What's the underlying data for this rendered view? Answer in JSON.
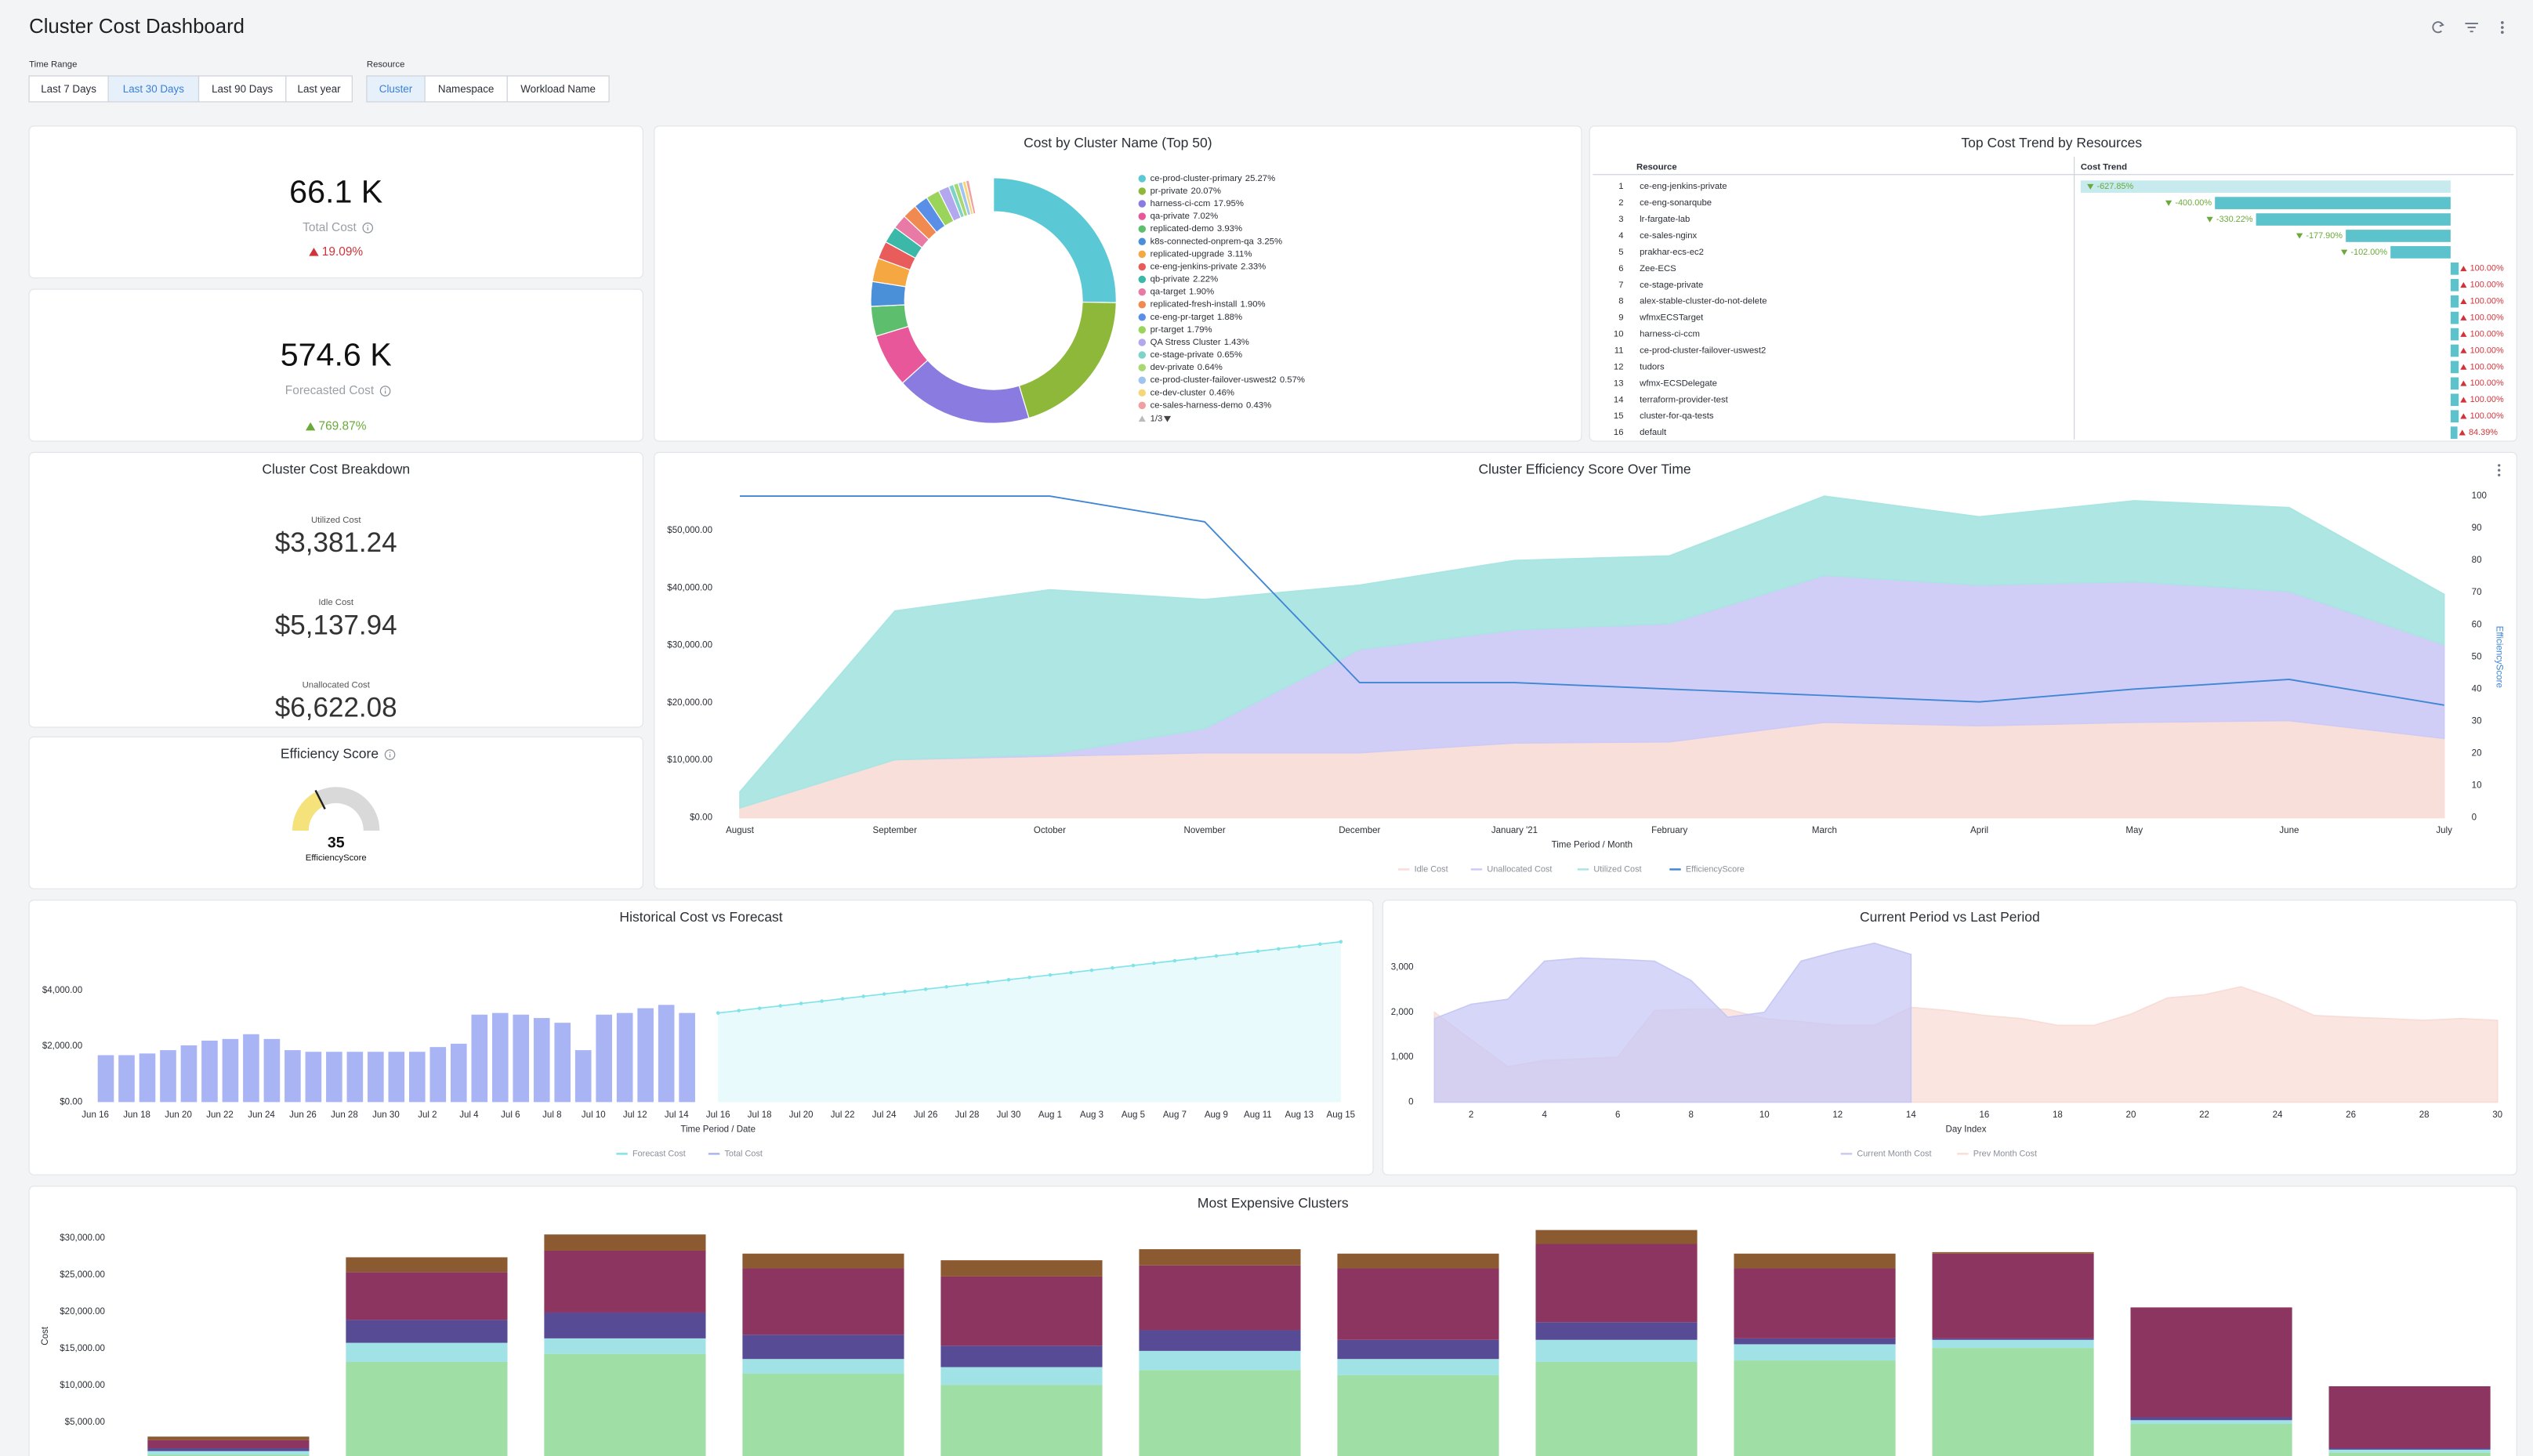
{
  "header": {
    "title": "Cluster Cost Dashboard"
  },
  "filters": [
    {
      "label": "Time Range",
      "options": [
        "Last 7 Days",
        "Last 30 Days",
        "Last 90 Days",
        "Last year"
      ],
      "selected": 1
    },
    {
      "label": "Resource",
      "options": [
        "Cluster",
        "Namespace",
        "Workload Name"
      ],
      "selected": 0
    }
  ],
  "kpis": [
    {
      "value": "66.1 K",
      "label": "Total Cost",
      "change": "19.09%",
      "direction": "up",
      "color": "#d0343a"
    },
    {
      "value": "574.6 K",
      "label": "Forecasted Cost",
      "change": "769.87%",
      "direction": "up",
      "color": "#6aaa3a"
    }
  ],
  "breakdown": {
    "title": "Cluster Cost Breakdown",
    "items": [
      {
        "label": "Utilized Cost",
        "value": "$3,381.24"
      },
      {
        "label": "Idle Cost",
        "value": "$5,137.94"
      },
      {
        "label": "Unallocated Cost",
        "value": "$6,622.08"
      }
    ]
  },
  "efficiency": {
    "title": "Efficiency Score",
    "value": 35,
    "label": "EfficiencyScore",
    "range": [
      0,
      100
    ],
    "color": "#f5e27a"
  },
  "trend_table": {
    "title": "Top Cost Trend by Resources",
    "columns": [
      "Resource",
      "Cost Trend"
    ],
    "bar_color": "#5cc3cc",
    "up_color": "#d0343a",
    "down_color": "#6aaa3a",
    "rows": [
      {
        "rank": 1,
        "resource": "ce-eng-jenkins-private",
        "value": -627.85,
        "label": "-627.85%"
      },
      {
        "rank": 2,
        "resource": "ce-eng-sonarqube",
        "value": -400.0,
        "label": "-400.00%"
      },
      {
        "rank": 3,
        "resource": "lr-fargate-lab",
        "value": -330.22,
        "label": "-330.22%"
      },
      {
        "rank": 4,
        "resource": "ce-sales-nginx",
        "value": -177.9,
        "label": "-177.90%"
      },
      {
        "rank": 5,
        "resource": "prakhar-ecs-ec2",
        "value": -102.0,
        "label": "-102.00%"
      },
      {
        "rank": 6,
        "resource": "Zee-ECS",
        "value": 100.0,
        "label": "100.00%"
      },
      {
        "rank": 7,
        "resource": "ce-stage-private",
        "value": 100.0,
        "label": "100.00%"
      },
      {
        "rank": 8,
        "resource": "alex-stable-cluster-do-not-delete",
        "value": 100.0,
        "label": "100.00%"
      },
      {
        "rank": 9,
        "resource": "wfmxECSTarget",
        "value": 100.0,
        "label": "100.00%"
      },
      {
        "rank": 10,
        "resource": "harness-ci-ccm",
        "value": 100.0,
        "label": "100.00%"
      },
      {
        "rank": 11,
        "resource": "ce-prod-cluster-failover-uswest2",
        "value": 100.0,
        "label": "100.00%"
      },
      {
        "rank": 12,
        "resource": "tudors",
        "value": 100.0,
        "label": "100.00%"
      },
      {
        "rank": 13,
        "resource": "wfmx-ECSDelegate",
        "value": 100.0,
        "label": "100.00%"
      },
      {
        "rank": 14,
        "resource": "terraform-provider-test",
        "value": 100.0,
        "label": "100.00%"
      },
      {
        "rank": 15,
        "resource": "cluster-for-qa-tests",
        "value": 100.0,
        "label": "100.00%"
      },
      {
        "rank": 16,
        "resource": "default",
        "value": 84.39,
        "label": "84.39%"
      }
    ]
  },
  "chart_data": [
    {
      "type": "pie",
      "title": "Cost by Cluster Name (Top 50)",
      "legend": "right",
      "legend_page": "1/3",
      "categories": [
        "ce-prod-cluster-primary",
        "pr-private",
        "harness-ci-ccm",
        "qa-private",
        "replicated-demo",
        "k8s-connected-onprem-qa",
        "replicated-upgrade",
        "ce-eng-jenkins-private",
        "qb-private",
        "qa-target",
        "replicated-fresh-install",
        "ce-eng-pr-target",
        "pr-target",
        "QA Stress Cluster",
        "ce-stage-private",
        "dev-private",
        "ce-prod-cluster-failover-uswest2",
        "ce-dev-cluster",
        "ce-sales-harness-demo"
      ],
      "values": [
        25.27,
        20.07,
        17.95,
        7.02,
        3.93,
        3.25,
        3.11,
        2.33,
        2.22,
        1.9,
        1.9,
        1.88,
        1.79,
        1.43,
        0.65,
        0.64,
        0.57,
        0.46,
        0.43
      ],
      "value_labels": [
        "25.27%",
        "20.07%",
        "17.95%",
        "7.02%",
        "3.93%",
        "3.25%",
        "3.11%",
        "2.33%",
        "2.22%",
        "1.90%",
        "1.90%",
        "1.88%",
        "1.79%",
        "1.43%",
        "0.65%",
        "0.64%",
        "0.57%",
        "0.46%",
        "0.43%"
      ],
      "colors": [
        "#5ac8d5",
        "#8db83a",
        "#8a7be0",
        "#e8579a",
        "#5dbf6e",
        "#4a90d9",
        "#f5a742",
        "#e85c5c",
        "#3bb8a8",
        "#e87aa5",
        "#f08a50",
        "#5a8fe8",
        "#9bd45a",
        "#b3a8f0",
        "#7dd3c8",
        "#a8d870",
        "#9fc4ef",
        "#f5d77a",
        "#f0a0a0"
      ]
    },
    {
      "type": "area",
      "stacked": true,
      "grid": false,
      "legend": "bottom",
      "title": "Cluster Efficiency Score Over Time",
      "x_label": "Time Period / Month",
      "y2_label": "EfficiencyScore",
      "categories": [
        "August",
        "September",
        "October",
        "November",
        "December",
        "January '21",
        "February",
        "March",
        "April",
        "May",
        "June",
        "July"
      ],
      "ylim": [
        0,
        56000
      ],
      "yticks": [
        {
          "value": 0,
          "label": "$0.00"
        },
        {
          "value": 10000,
          "label": "$10,000.00"
        },
        {
          "value": 20000,
          "label": "$20,000.00"
        },
        {
          "value": 30000,
          "label": "$30,000.00"
        },
        {
          "value": 40000,
          "label": "$40,000.00"
        },
        {
          "value": 50000,
          "label": "$50,000.00"
        }
      ],
      "y2lim": [
        0,
        100
      ],
      "y2ticks": [
        0,
        10,
        20,
        30,
        40,
        50,
        60,
        70,
        80,
        90,
        100
      ],
      "series": [
        {
          "name": "Idle Cost",
          "color": "#f9ddd8",
          "values": [
            1700,
            10100,
            10700,
            11300,
            11300,
            13000,
            13200,
            16600,
            16000,
            16600,
            16900,
            13800
          ]
        },
        {
          "name": "Unallocated Cost",
          "color": "#cdcaf6",
          "values": [
            0,
            0,
            300,
            4200,
            18000,
            19700,
            20600,
            25600,
            24500,
            24500,
            22500,
            16300
          ]
        },
        {
          "name": "Utilized Cost",
          "color": "#a9e5e2",
          "values": [
            2800,
            25900,
            28700,
            22500,
            11200,
            12100,
            11800,
            13800,
            11900,
            14100,
            14600,
            8800
          ]
        },
        {
          "name": "EfficiencyScore",
          "color": "#3f86d4",
          "axis": "y2",
          "values": [
            100,
            100,
            100,
            92,
            42,
            42,
            40,
            38,
            36,
            40,
            43,
            35
          ]
        }
      ]
    },
    {
      "type": "combo",
      "grid": false,
      "legend": "bottom",
      "title": "Historical Cost vs Forecast",
      "x_label": "Time Period / Date",
      "categories": [
        "Jun 16",
        null,
        "Jun 18",
        null,
        "Jun 20",
        null,
        "Jun 22",
        null,
        "Jun 24",
        null,
        "Jun 26",
        null,
        "Jun 28",
        null,
        "Jun 30",
        null,
        "Jul 2",
        null,
        "Jul 4",
        null,
        "Jul 6",
        null,
        "Jul 8",
        null,
        "Jul 10",
        null,
        "Jul 12",
        null,
        "Jul 14",
        null,
        "Jul 16",
        null,
        "Jul 18",
        null,
        "Jul 20",
        null,
        "Jul 22",
        null,
        "Jul 24",
        null,
        "Jul 26",
        null,
        "Jul 28",
        null,
        "Jul 30",
        null,
        "Aug 1",
        null,
        "Aug 3",
        null,
        "Aug 5",
        null,
        "Aug 7",
        null,
        "Aug 9",
        null,
        "Aug 11",
        null,
        "Aug 13",
        null,
        "Aug 15"
      ],
      "ylim": [
        0,
        5900
      ],
      "yticks": [
        {
          "value": 0,
          "label": "$0.00"
        },
        {
          "value": 2000,
          "label": "$2,000.00"
        },
        {
          "value": 4000,
          "label": "$4,000.00"
        }
      ],
      "series": [
        {
          "name": "Forecast Cost",
          "type": "area",
          "color": "#7fe3e8",
          "values": [
            null,
            null,
            null,
            null,
            null,
            null,
            null,
            null,
            null,
            null,
            null,
            null,
            null,
            null,
            null,
            null,
            null,
            null,
            null,
            null,
            null,
            null,
            null,
            null,
            null,
            null,
            null,
            null,
            null,
            null,
            3190,
            3275,
            3360,
            3445,
            3530,
            3615,
            3700,
            3785,
            3870,
            3955,
            4040,
            4125,
            4210,
            4295,
            4380,
            4465,
            4550,
            4635,
            4720,
            4805,
            4890,
            4975,
            5060,
            5145,
            5230,
            5315,
            5400,
            5485,
            5570,
            5655,
            5740
          ]
        },
        {
          "name": "Total Cost",
          "type": "bar",
          "color": "#a9b4f5",
          "values": [
            1680,
            1680,
            1740,
            1860,
            2030,
            2200,
            2260,
            2430,
            2260,
            1860,
            1800,
            1800,
            1800,
            1800,
            1800,
            1800,
            1970,
            2090,
            3130,
            3190,
            3130,
            3010,
            2840,
            1860,
            3130,
            3190,
            3360,
            3480,
            3190,
            null,
            null,
            null,
            null,
            null,
            null,
            null,
            null,
            null,
            null,
            null,
            null,
            null,
            null,
            null,
            null,
            null,
            null,
            null,
            null,
            null,
            null,
            null,
            null,
            null,
            null,
            null,
            null,
            null,
            null,
            null,
            null
          ]
        }
      ]
    },
    {
      "type": "area",
      "stacked": false,
      "grid": false,
      "legend": "bottom",
      "title": "Current Period vs Last Period",
      "x_label": "Day Index",
      "x": [
        1,
        2,
        3,
        4,
        5,
        6,
        7,
        8,
        9,
        10,
        11,
        12,
        13,
        14,
        15,
        16,
        17,
        18,
        19,
        20,
        21,
        22,
        23,
        24,
        25,
        26,
        27,
        28,
        29,
        30
      ],
      "xlim": [
        1,
        30
      ],
      "xticks": [
        2,
        4,
        6,
        8,
        10,
        12,
        14,
        16,
        18,
        20,
        22,
        24,
        26,
        28,
        30
      ],
      "ylim": [
        0,
        3600
      ],
      "yticks": [
        0,
        {
          "value": 1000,
          "label": "1,000"
        },
        {
          "value": 2000,
          "label": "2,000"
        },
        {
          "value": 3000,
          "label": "3,000"
        }
      ],
      "series": [
        {
          "name": "Current Month Cost",
          "color": "#c8c8f5",
          "values": [
            1860,
            2180,
            2290,
            3140,
            3210,
            3180,
            3140,
            2710,
            1890,
            2000,
            3140,
            3360,
            3540,
            3290,
            null,
            null,
            null,
            null,
            null,
            null,
            null,
            null,
            null,
            null,
            null,
            null,
            null,
            null,
            null,
            null
          ]
        },
        {
          "name": "Prev Month Cost",
          "color": "#f8dcd6",
          "values": [
            2000,
            1390,
            790,
            930,
            960,
            1000,
            2040,
            2070,
            2070,
            1860,
            1790,
            1710,
            1710,
            2110,
            2040,
            1930,
            1860,
            1710,
            1710,
            1960,
            2320,
            2390,
            2570,
            2290,
            1930,
            1890,
            1860,
            1820,
            1860,
            1820
          ]
        }
      ]
    },
    {
      "type": "stacked_bar",
      "grid": false,
      "title": "Most Expensive Clusters",
      "y_label": "Cost",
      "categories": [
        null,
        null,
        null,
        null,
        null,
        null,
        null,
        null,
        null,
        null,
        null,
        null
      ],
      "ylim": [
        0,
        33000
      ],
      "yticks": [
        {
          "value": 5000,
          "label": "$5,000.00"
        },
        {
          "value": 10000,
          "label": "$10,000.00"
        },
        {
          "value": 15000,
          "label": "$15,000.00"
        },
        {
          "value": 20000,
          "label": "$20,000.00"
        },
        {
          "value": 25000,
          "label": "$25,000.00"
        },
        {
          "value": 30000,
          "label": "$30,000.00"
        }
      ],
      "series": [
        {
          "color": "#9fdea5",
          "values": [
            600,
            13200,
            14300,
            11600,
            10100,
            12100,
            11400,
            13200,
            13400,
            15100,
            4800,
            900
          ]
        },
        {
          "color": "#a0e2e6",
          "values": [
            500,
            2600,
            2100,
            2000,
            2400,
            2600,
            2200,
            3000,
            2200,
            1100,
            500,
            400
          ]
        },
        {
          "color": "#564b94",
          "values": [
            400,
            3100,
            3500,
            3300,
            2900,
            2800,
            2600,
            2400,
            800,
            200,
            400,
            200
          ]
        },
        {
          "color": "#8b3560",
          "values": [
            1100,
            6500,
            8400,
            9000,
            9400,
            8800,
            9700,
            10600,
            9500,
            11500,
            14900,
            8400
          ]
        },
        {
          "color": "#8b5a30",
          "values": [
            470,
            2000,
            2200,
            2000,
            2200,
            2200,
            2000,
            1900,
            2000,
            200,
            0,
            0
          ]
        }
      ]
    }
  ]
}
